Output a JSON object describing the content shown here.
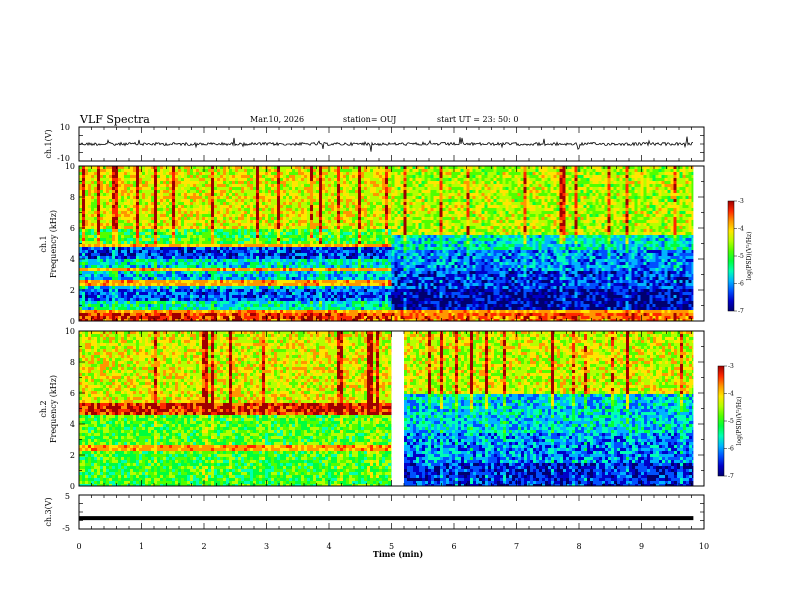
{
  "header": {
    "title": "VLF Spectra",
    "date": "Mar.10, 2026",
    "station": "station= OUJ",
    "start": "start  UT  =   23: 50: 0"
  },
  "colors": {
    "scale": [
      "#000070",
      "#0000c8",
      "#0050ff",
      "#00b4ff",
      "#00ffb4",
      "#00ff3c",
      "#50ff00",
      "#b4ff00",
      "#ffe600",
      "#ff9600",
      "#ff2800",
      "#a00000"
    ],
    "trace": "#000000",
    "frame": "#000000"
  },
  "chart_data": [
    {
      "type": "line",
      "id": "ch1-waveform",
      "ylabel": "ch.1(V)",
      "ylim": [
        -10,
        10
      ],
      "yticks": [
        "10",
        "-10"
      ],
      "xlim": [
        0,
        10
      ],
      "series": [
        {
          "x": [
            0,
            9.83
          ],
          "y": [
            0,
            0
          ]
        }
      ]
    },
    {
      "type": "heatmap",
      "id": "ch1-spectrogram",
      "ylabel_top": "ch.1",
      "ylabel": "Frequency  (kHz)",
      "ylim": [
        0,
        10
      ],
      "yticks": [
        "0",
        "2",
        "4",
        "6",
        "8",
        "10"
      ],
      "xlim": [
        0,
        10
      ],
      "x_end_min": 9.83,
      "colorbar": {
        "label": "log(PSD)(V²/Hz)",
        "range": [
          -7,
          -3
        ],
        "ticks": [
          "-3",
          "-4",
          "-5",
          "-6",
          "-7"
        ]
      },
      "segments": [
        {
          "t": [
            0,
            5
          ],
          "levels": [
            [
              0,
              0.6,
              -3.6
            ],
            [
              0.6,
              1.2,
              -5.5
            ],
            [
              1.2,
              2.0,
              -6.2
            ],
            [
              2.0,
              3.0,
              -5.8
            ],
            [
              3.0,
              4.0,
              -5.6
            ],
            [
              4.0,
              4.8,
              -6.3
            ],
            [
              4.8,
              6.0,
              -5.0
            ],
            [
              6.0,
              10.0,
              -4.3
            ]
          ],
          "lines_khz": [
            0.3,
            0.5,
            2.3,
            2.6,
            3.3,
            4.8
          ]
        },
        {
          "t": [
            5,
            9.83
          ],
          "levels": [
            [
              0,
              0.6,
              -3.8
            ],
            [
              0.6,
              2.0,
              -6.6
            ],
            [
              2.0,
              3.2,
              -6.3
            ],
            [
              3.2,
              4.5,
              -6.0
            ],
            [
              4.5,
              5.5,
              -5.6
            ],
            [
              5.5,
              10.0,
              -4.5
            ]
          ],
          "lines_khz": [
            0.3,
            0.5
          ]
        }
      ]
    },
    {
      "type": "heatmap",
      "id": "ch2-spectrogram",
      "ylabel_top": "ch.2",
      "ylabel": "Frequency  (kHz)",
      "ylim": [
        0,
        10
      ],
      "yticks": [
        "0",
        "2",
        "4",
        "6",
        "8",
        "10"
      ],
      "xlim": [
        0,
        10
      ],
      "x_end_min": 9.83,
      "colorbar": {
        "label": "log(PSD)(V²/Hz)",
        "range": [
          -7,
          -3
        ],
        "ticks": [
          "-3",
          "-4",
          "-5",
          "-6",
          "-7"
        ]
      },
      "segments": [
        {
          "t": [
            0,
            5
          ],
          "levels": [
            [
              0,
              1.0,
              -5.0
            ],
            [
              1.0,
              2.0,
              -5.0
            ],
            [
              2.0,
              4.5,
              -4.9
            ],
            [
              4.5,
              5.3,
              -3.4
            ],
            [
              5.3,
              10.0,
              -4.3
            ]
          ],
          "lines_khz": [
            2.3,
            2.6,
            4.8,
            5.1
          ]
        },
        {
          "t": [
            5.2,
            9.83
          ],
          "levels": [
            [
              0,
              1.5,
              -6.4
            ],
            [
              1.5,
              3.5,
              -6.0
            ],
            [
              3.5,
              6.0,
              -5.7
            ],
            [
              6.0,
              10.0,
              -4.4
            ]
          ],
          "lines_khz": []
        }
      ]
    },
    {
      "type": "line",
      "id": "ch3-waveform",
      "ylabel": "ch.3(V)",
      "ylim": [
        -5,
        5
      ],
      "yticks": [
        "5",
        "-5"
      ],
      "xlim": [
        0,
        10
      ],
      "series": [
        {
          "x": [
            0,
            9.83
          ],
          "y": [
            -1.8,
            -1.8
          ]
        }
      ]
    }
  ],
  "xaxis": {
    "label": "Time  (min)",
    "ticks": [
      "0",
      "1",
      "2",
      "3",
      "4",
      "5",
      "6",
      "7",
      "8",
      "9",
      "10"
    ]
  }
}
